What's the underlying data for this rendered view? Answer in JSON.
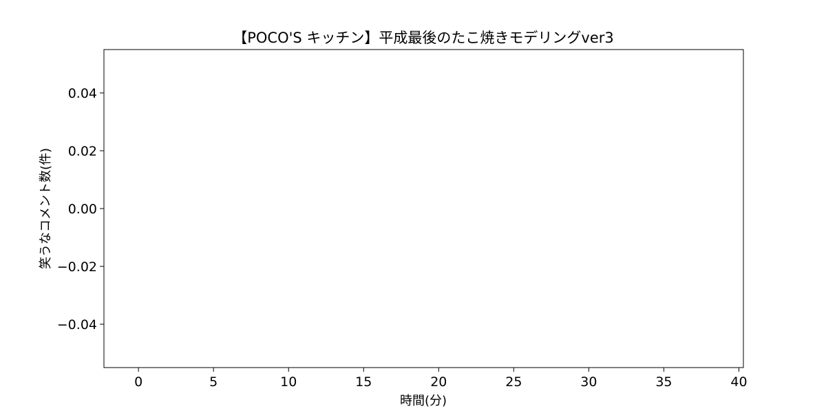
{
  "chart_data": {
    "type": "line",
    "title": "【POCO'S キッチン】平成最後のたこ焼きモデリングver3",
    "xlabel": "時間(分)",
    "ylabel": "笑うなコメント数(件)",
    "xlim": [
      -2.3,
      40.3
    ],
    "ylim": [
      -0.055,
      0.055
    ],
    "xticks": [
      0,
      5,
      10,
      15,
      20,
      25,
      30,
      35,
      40
    ],
    "xtick_labels": [
      "0",
      "5",
      "10",
      "15",
      "20",
      "25",
      "30",
      "35",
      "40"
    ],
    "yticks": [
      0.04,
      0.02,
      0.0,
      -0.02,
      -0.04
    ],
    "ytick_labels": [
      "0.04",
      "0.02",
      "0.00",
      "−0.02",
      "−0.04"
    ],
    "series": [],
    "grid": false,
    "legend": "none"
  }
}
